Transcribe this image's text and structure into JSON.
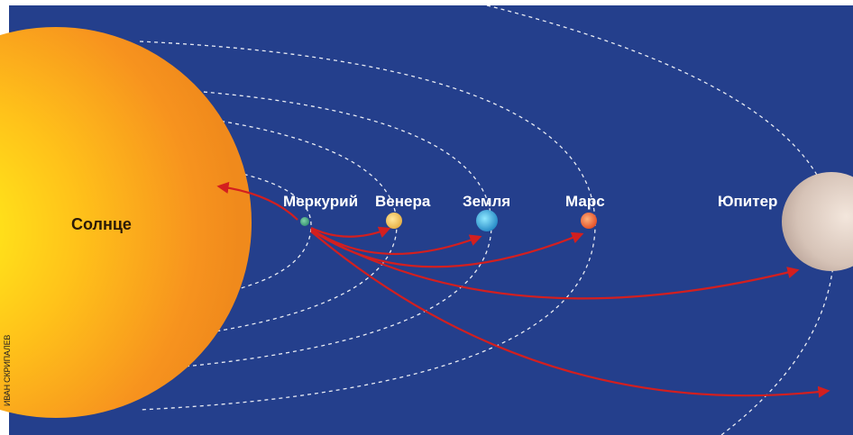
{
  "credit": "ИВАН СКРИПАЛЕВ",
  "colors": {
    "sky": "#243f8c",
    "arrow": "#d31f1f",
    "orbit": "#ffffff",
    "label": "#ffffff"
  },
  "sun": {
    "label": "Солнце"
  },
  "planets": [
    {
      "label": "Меркурий"
    },
    {
      "label": "Венера"
    },
    {
      "label": "Земля"
    },
    {
      "label": "Марс"
    },
    {
      "label": "Юпитер"
    }
  ]
}
